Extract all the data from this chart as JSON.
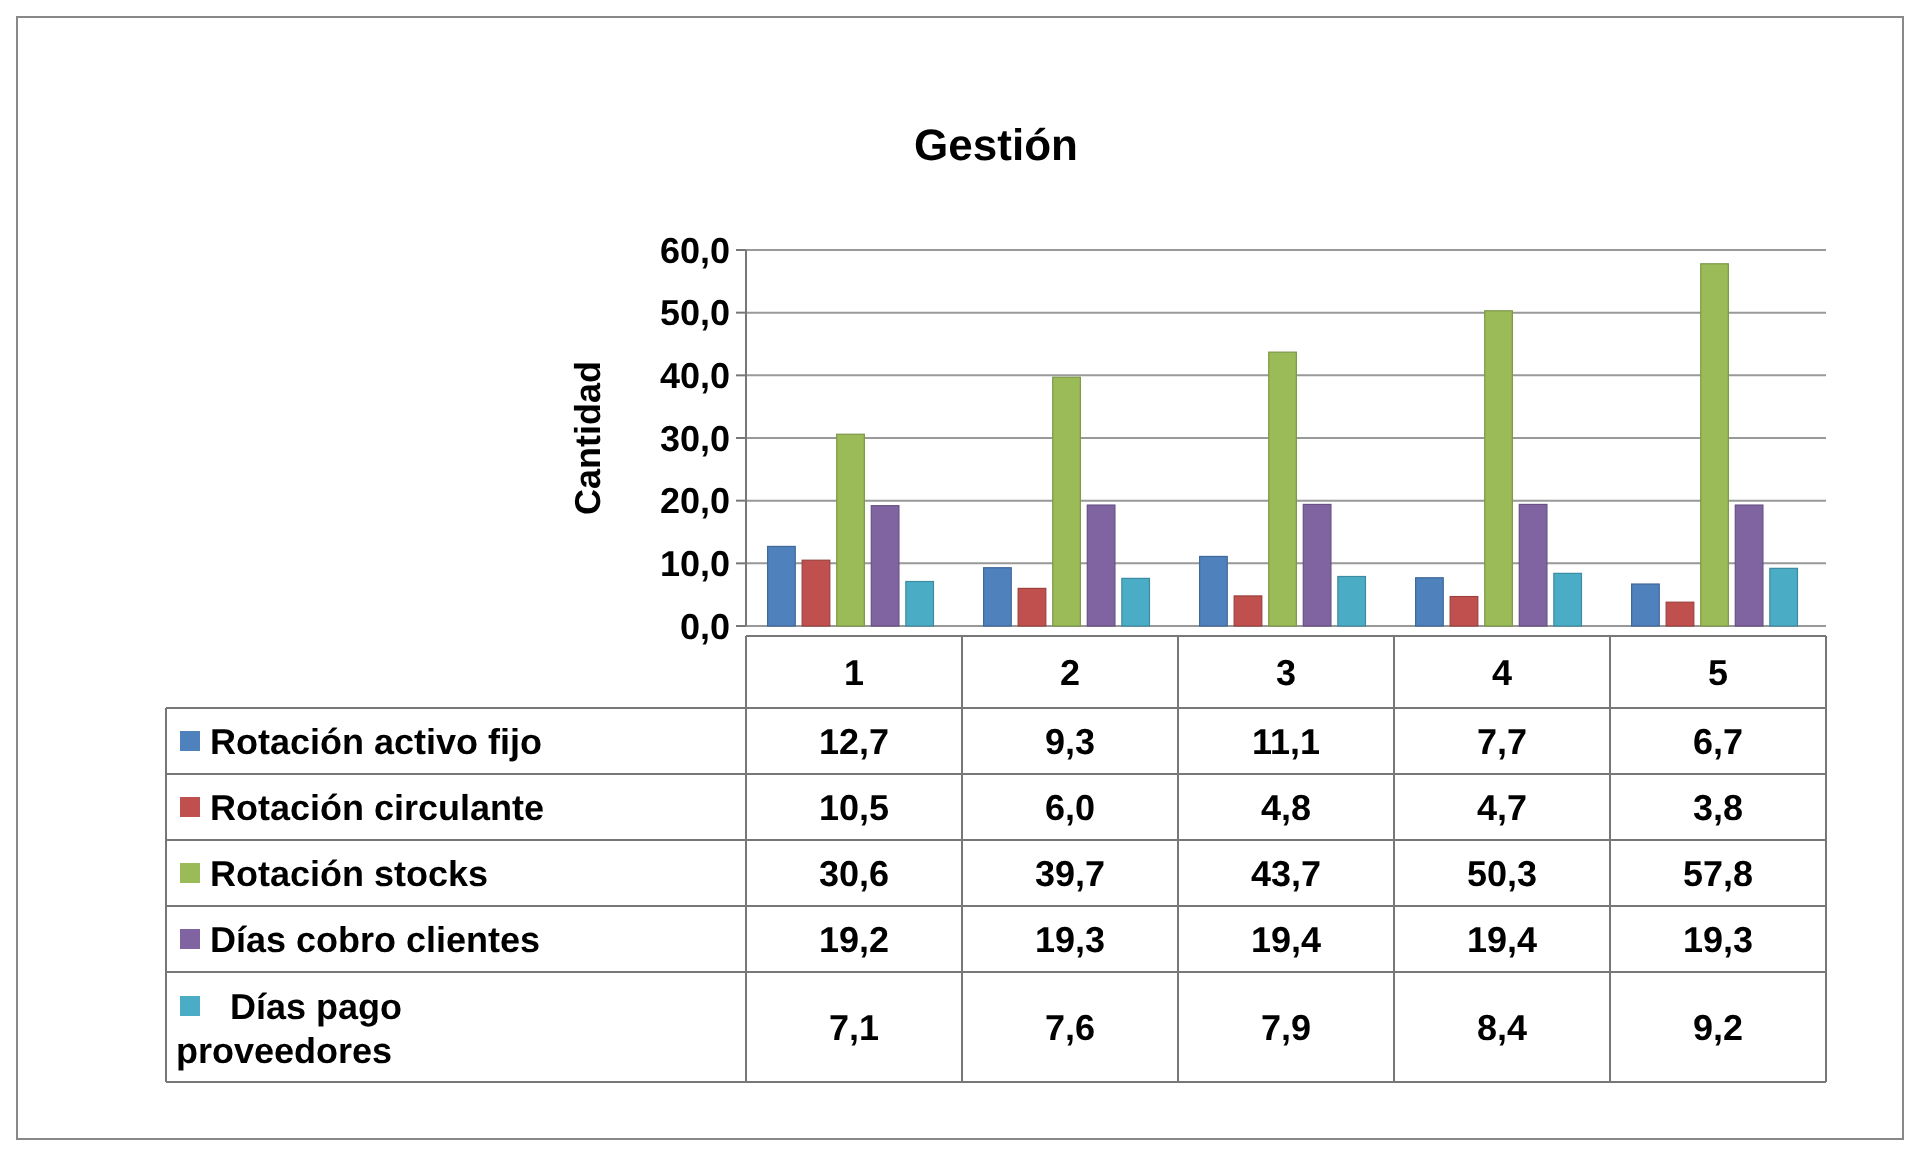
{
  "chart_data": {
    "type": "bar",
    "title": "Gestión",
    "ylabel": "Cantidad",
    "categories": [
      "1",
      "2",
      "3",
      "4",
      "5"
    ],
    "ylim": [
      0,
      60
    ],
    "yticks": [
      {
        "value": 0,
        "label": "0,0"
      },
      {
        "value": 10,
        "label": "10,0"
      },
      {
        "value": 20,
        "label": "20,0"
      },
      {
        "value": 30,
        "label": "30,0"
      },
      {
        "value": 40,
        "label": "40,0"
      },
      {
        "value": 50,
        "label": "50,0"
      },
      {
        "value": 60,
        "label": "60,0"
      }
    ],
    "grid": "y",
    "legend": "bottom",
    "series": [
      {
        "name": "Rotación activo fijo",
        "color": "#4f81bd",
        "values": [
          12.7,
          9.3,
          11.1,
          7.7,
          6.7
        ],
        "value_labels": [
          "12,7",
          "9,3",
          "11,1",
          "7,7",
          "6,7"
        ]
      },
      {
        "name": "Rotación circulante",
        "color": "#c0504d",
        "values": [
          10.5,
          6.0,
          4.8,
          4.7,
          3.8
        ],
        "value_labels": [
          "10,5",
          "6,0",
          "4,8",
          "4,7",
          "3,8"
        ]
      },
      {
        "name": "Rotación stocks",
        "color": "#9bbb59",
        "values": [
          30.6,
          39.7,
          43.7,
          50.3,
          57.8
        ],
        "value_labels": [
          "30,6",
          "39,7",
          "43,7",
          "50,3",
          "57,8"
        ]
      },
      {
        "name": "Días cobro clientes",
        "color": "#8064a2",
        "values": [
          19.2,
          19.3,
          19.4,
          19.4,
          19.3
        ],
        "value_labels": [
          "19,2",
          "19,3",
          "19,4",
          "19,4",
          "19,3"
        ]
      },
      {
        "name": "Días pago proveedores",
        "color": "#4bacc6",
        "values": [
          7.1,
          7.6,
          7.9,
          8.4,
          9.2
        ],
        "value_labels": [
          "7,1",
          "7,6",
          "7,9",
          "8,4",
          "9,2"
        ]
      }
    ]
  }
}
